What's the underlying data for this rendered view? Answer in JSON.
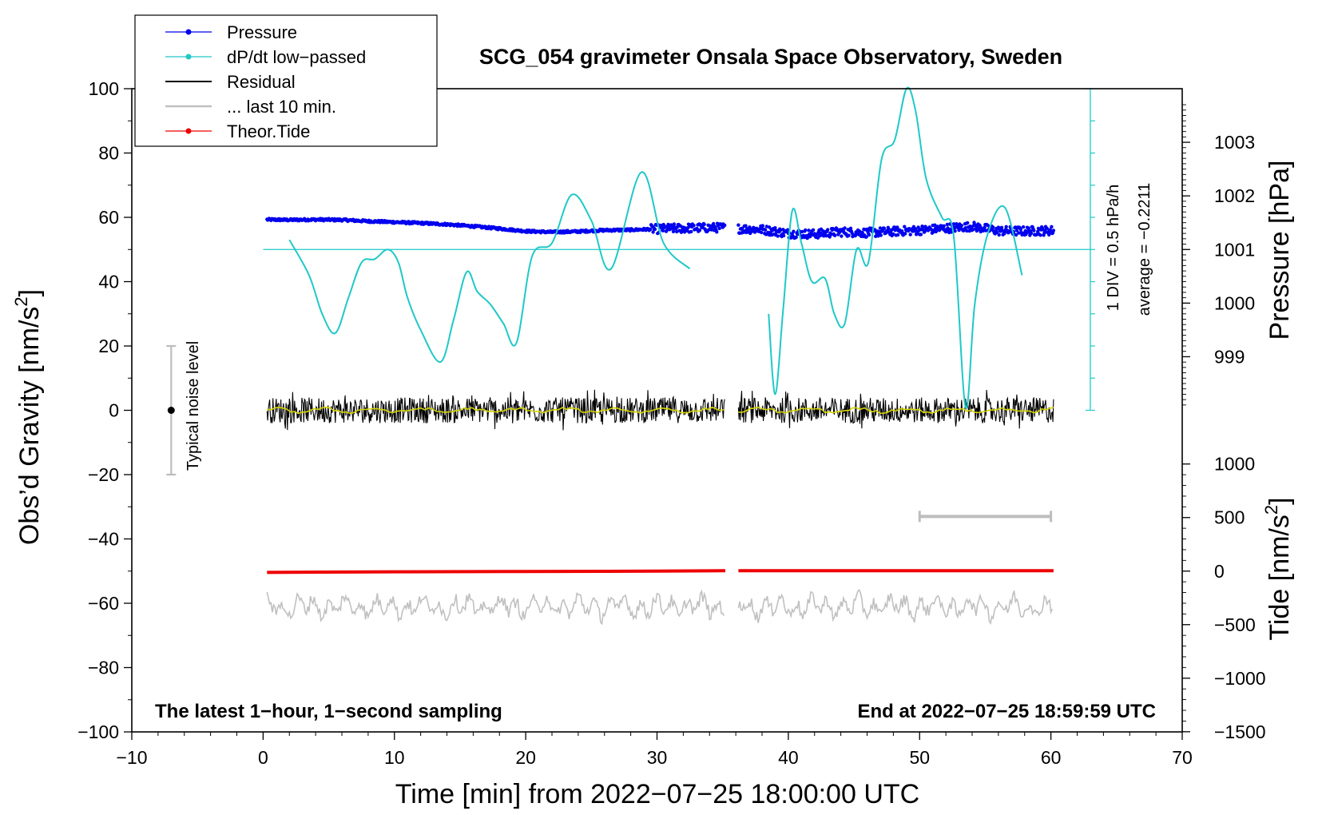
{
  "chart_data": {
    "type": "line",
    "title": "SCG_054 gravimeter Onsala Space Observatory, Sweden",
    "xlabel": "Time [min] from 2022−07−25 18:00:00 UTC",
    "ylabel_left": "Obs’d Gravity [nm/s",
    "ylabel_left_sup": "2",
    "ylabel_left_end": "]",
    "ylabel_right_pressure": "Pressure [hPa]",
    "ylabel_right_tide": "Tide [nm/s",
    "ylabel_right_tide_sup": "2",
    "ylabel_right_tide_end": "]",
    "xlim": [
      -10,
      70
    ],
    "ylim": [
      -100,
      100
    ],
    "xticks": [
      "−10",
      "0",
      "10",
      "20",
      "30",
      "40",
      "50",
      "60",
      "70"
    ],
    "xtick_values": [
      -10,
      0,
      10,
      20,
      30,
      40,
      50,
      60,
      70
    ],
    "yticks": [
      "−100",
      "−80",
      "−60",
      "−40",
      "−20",
      "0",
      "20",
      "40",
      "60",
      "80",
      "100"
    ],
    "ytick_values": [
      -100,
      -80,
      -60,
      -40,
      -20,
      0,
      20,
      40,
      60,
      80,
      100
    ],
    "pressure_ticks": [
      "1003",
      "1002",
      "1001",
      "1000",
      "999"
    ],
    "pressure_tick_values": [
      1003,
      1002,
      1001,
      1000,
      999
    ],
    "pressure_mapping": {
      "hpa_1001_at_gravity": 50,
      "gravity_per_hpa": 16.67
    },
    "tide_ticks": [
      "1000",
      "500",
      "0",
      "−500",
      "−1000",
      "−1500"
    ],
    "tide_tick_values": [
      1000,
      500,
      0,
      -500,
      -1000,
      -1500
    ],
    "tide_mapping": {
      "tide_0_at_gravity": -50,
      "gravity_per_unit": 0.0333
    },
    "legend": {
      "placement": "top-left",
      "entries": [
        {
          "name": "Pressure",
          "color": "#0000ee",
          "marker": true
        },
        {
          "name": "dP/dt low−passed",
          "color": "#20c8c8",
          "marker": true
        },
        {
          "name": "Residual",
          "color": "#000000",
          "marker": false
        },
        {
          "name": "... last 10 min.",
          "color": "#c0c0c0",
          "marker": false
        },
        {
          "name": "Theor.Tide",
          "color": "#ee0000",
          "marker": true
        }
      ]
    },
    "dpdt_scale": {
      "div_label": "1 DIV = 0.5 hPa/h",
      "average_label": "average = −0.2211",
      "baseline": 50,
      "x": 63
    },
    "noise_bar": {
      "label": "Typical noise level",
      "x": -7,
      "center": 0,
      "range": [
        -20,
        20
      ]
    },
    "last10_bar": {
      "x_start": 50,
      "x_end": 60,
      "y": -33
    },
    "segments": [
      [
        0.3,
        35.2
      ],
      [
        36.2,
        60.2
      ]
    ],
    "series": [
      {
        "name": "Pressure",
        "color": "#0000ee",
        "x": [
          0.3,
          2,
          4,
          6,
          8,
          10,
          12,
          14,
          16,
          18,
          20,
          22,
          24,
          26,
          28,
          29.5,
          31,
          33,
          35.2,
          36.2,
          38,
          40,
          42,
          44,
          46,
          48,
          50,
          52,
          54,
          56,
          58,
          60.2
        ],
        "y": [
          59.3,
          59.2,
          59.3,
          59.2,
          58.8,
          58.5,
          58.2,
          57.8,
          57.2,
          56.5,
          55.7,
          55.4,
          55.6,
          56.0,
          56.1,
          56.3,
          56.5,
          56.7,
          56.8,
          56.5,
          56.2,
          55.0,
          54.8,
          55.5,
          55.2,
          55.6,
          56.0,
          56.6,
          57.2,
          55.8,
          55.7,
          55.9
        ]
      },
      {
        "name": "dP/dt low−passed",
        "color": "#20c8c8",
        "segments": [
          {
            "x": [
              2,
              3.5,
              4.5,
              5.5,
              6.5,
              7.5,
              8.5,
              9.5,
              10.3,
              11,
              12,
              13.5,
              14.5,
              15.5,
              16.3,
              17.3,
              18.3,
              19.3,
              20.5,
              22,
              23.5,
              25,
              26.5,
              28.8,
              30.5,
              32.5
            ],
            "y": [
              53,
              42,
              30,
              24,
              35,
              46,
              47,
              50,
              46,
              35,
              25,
              15,
              28,
              43,
              37,
              33,
              27,
              21,
              48,
              52,
              67,
              59,
              44,
              74,
              52,
              44
            ]
          },
          {
            "x": [
              38.5,
              39,
              39.6,
              40.3,
              41,
              41.8,
              42.8,
              43.5,
              44.3,
              45.2,
              46.1,
              47.1,
              48.1,
              49,
              49.7,
              50.5,
              51.7,
              52.6,
              53.5,
              54.2,
              55.2,
              56.5,
              57.8
            ],
            "y": [
              30,
              5,
              31,
              62,
              52,
              40,
              41,
              30,
              27,
              50,
              46,
              78,
              84,
              100,
              93,
              72,
              60,
              54,
              1,
              33,
              55,
              63,
              42
            ]
          }
        ]
      },
      {
        "name": "Residual",
        "color": "#000000",
        "segments": [
          [
            0.3,
            35.2
          ],
          [
            36.2,
            60.2
          ]
        ],
        "level": 0,
        "noise_amplitude": 4
      },
      {
        "name": "... last 10 min.",
        "color": "#c0c0c0",
        "segments": [
          [
            0.3,
            35.2
          ],
          [
            36.2,
            60.2
          ]
        ],
        "level": -61,
        "noise_amplitude": 4
      },
      {
        "name": "Theor.Tide",
        "color": "#ee0000",
        "segments": [
          {
            "x": [
              0.3,
              10,
              20,
              30,
              35.2
            ],
            "y": [
              -50.4,
              -50.2,
              -50.1,
              -50.0,
              -49.9
            ]
          },
          {
            "x": [
              36.2,
              45,
              50,
              60.2
            ],
            "y": [
              -49.9,
              -49.9,
              -49.9,
              -49.9
            ]
          }
        ]
      }
    ],
    "annotations": [
      {
        "text": "The latest 1−hour, 1−second sampling",
        "position": "bottom-left"
      },
      {
        "text": "End at 2022−07−25 18:59:59 UTC",
        "position": "bottom-right"
      }
    ]
  }
}
